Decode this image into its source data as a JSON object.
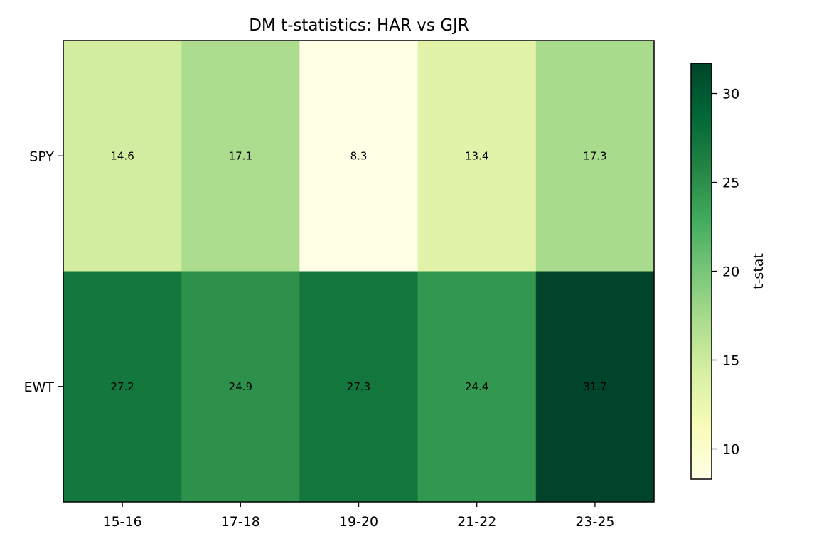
{
  "chart_data": {
    "type": "heatmap",
    "title": "DM t-statistics: HAR vs GJR",
    "x_categories": [
      "15-16",
      "17-18",
      "19-20",
      "21-22",
      "23-25"
    ],
    "y_categories": [
      "SPY",
      "EWT"
    ],
    "values": [
      [
        14.6,
        17.1,
        8.3,
        13.4,
        17.3
      ],
      [
        27.2,
        24.9,
        27.3,
        24.4,
        31.7
      ]
    ],
    "value_labels": [
      [
        "14.6",
        "17.1",
        "8.3",
        "13.4",
        "17.3"
      ],
      [
        "27.2",
        "24.9",
        "27.3",
        "24.4",
        "31.7"
      ]
    ],
    "colormap": "YlGn",
    "colorbar": {
      "label": "t-stat",
      "range": [
        8.3,
        31.7
      ],
      "ticks": [
        10,
        15,
        20,
        25,
        30
      ],
      "tick_labels": [
        "10",
        "15",
        "20",
        "25",
        "30"
      ]
    },
    "grid": false
  }
}
